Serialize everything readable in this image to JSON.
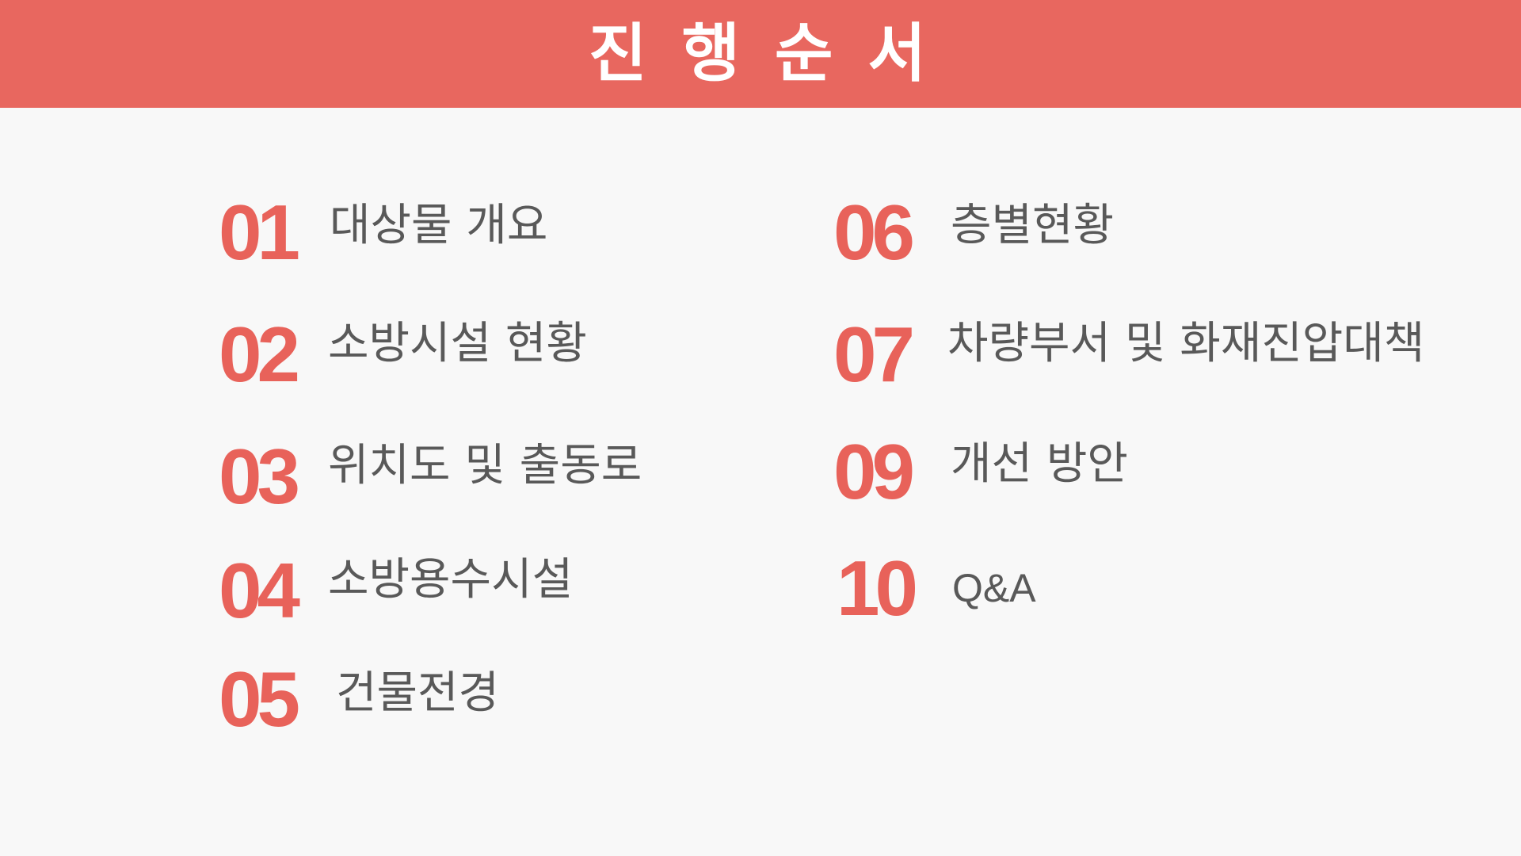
{
  "slide": {
    "title": "진 행 순 서",
    "colors": {
      "header_bg": "#e8675f",
      "number": "#e8625a",
      "label": "#595959",
      "background": "#f8f8f8"
    },
    "items": [
      {
        "num": "01",
        "label": "대상물 개요"
      },
      {
        "num": "02",
        "label": "소방시설 현황"
      },
      {
        "num": "03",
        "label": "위치도 및 출동로"
      },
      {
        "num": "04",
        "label": "소방용수시설"
      },
      {
        "num": "05",
        "label": "건물전경"
      },
      {
        "num": "06",
        "label": "층별현황"
      },
      {
        "num": "07",
        "label": "차량부서 및 화재진압대책"
      },
      {
        "num": "09",
        "label": "개선 방안"
      },
      {
        "num": "10",
        "label": "Q&A"
      }
    ]
  }
}
